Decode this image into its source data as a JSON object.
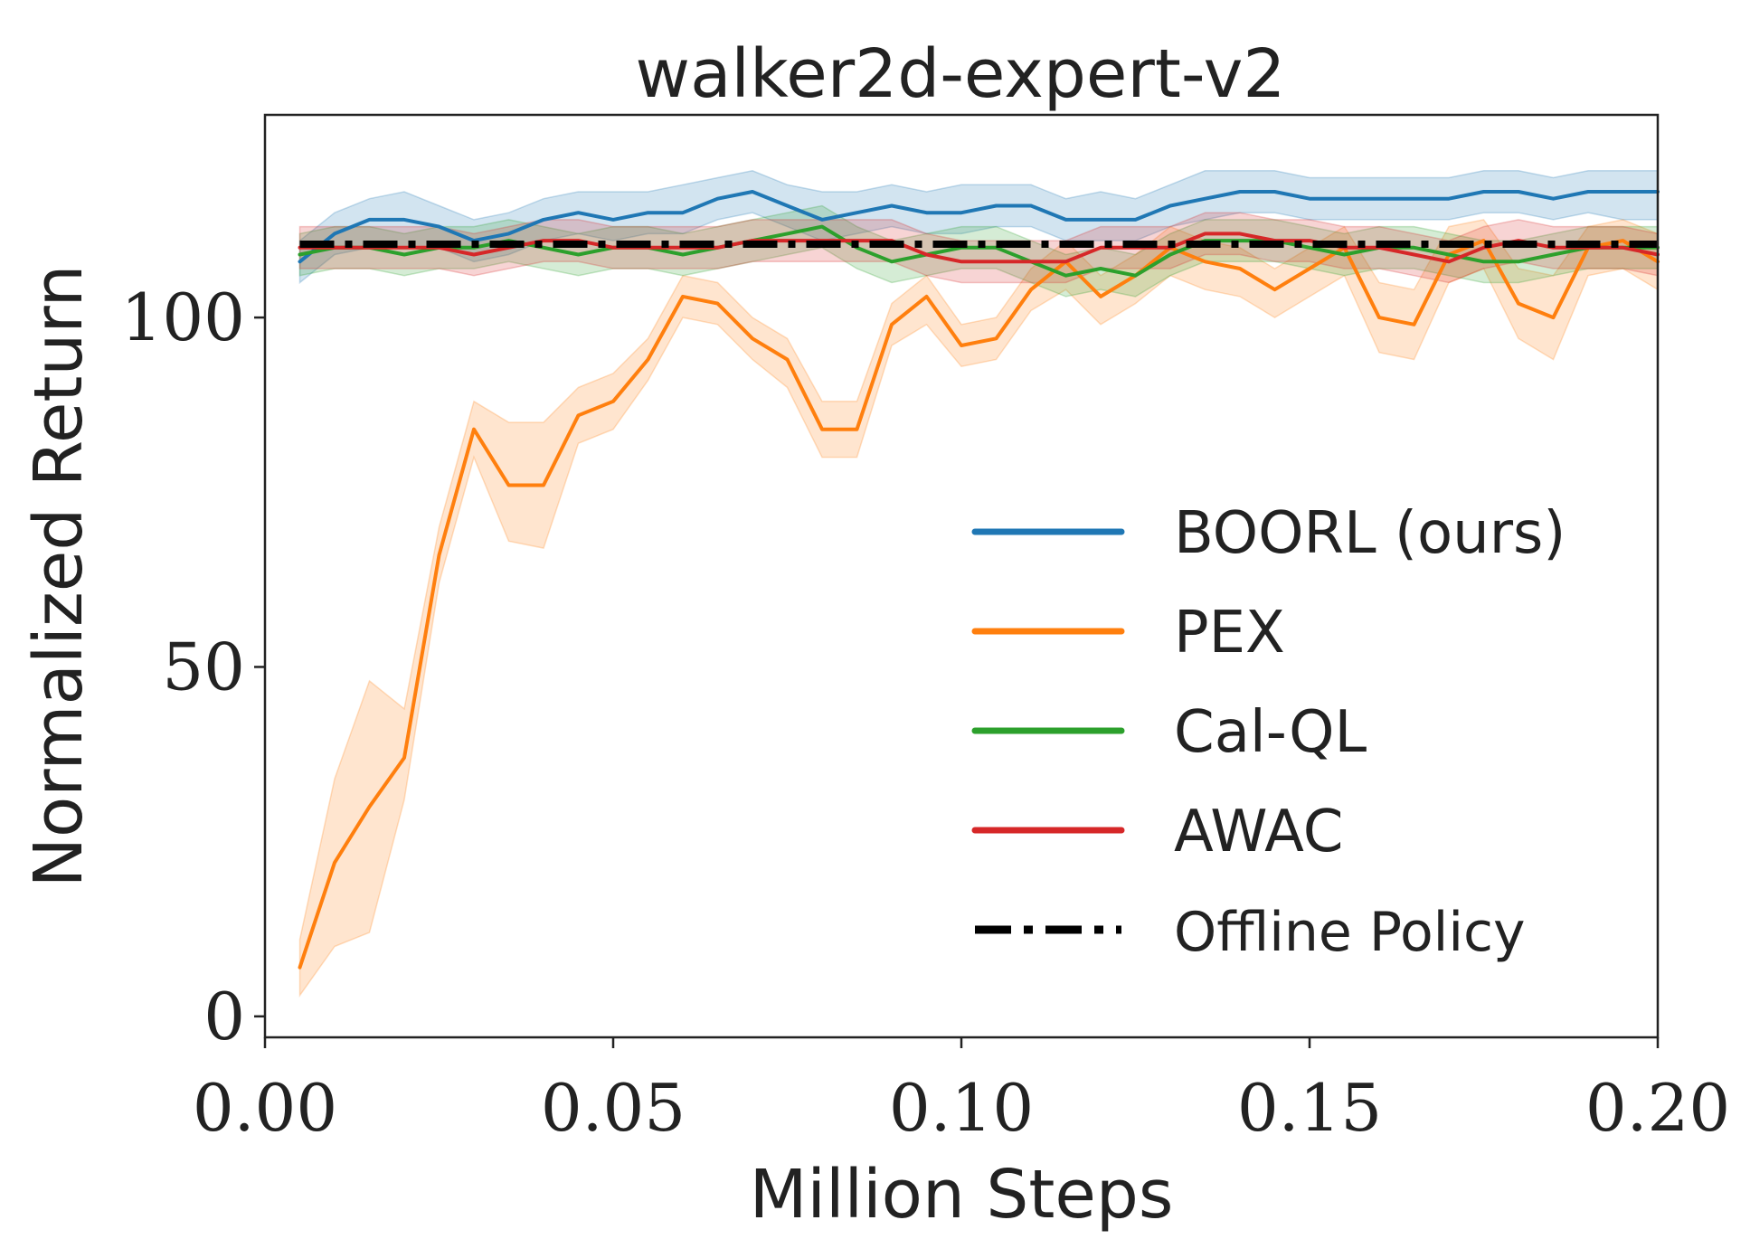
{
  "chart_data": {
    "type": "line",
    "title": "walker2d-expert-v2",
    "xlabel": "Million Steps",
    "ylabel": "Normalized Return",
    "xlim": [
      0.0,
      0.2
    ],
    "ylim": [
      -3,
      129
    ],
    "xticks": [
      0.0,
      0.05,
      0.1,
      0.15,
      0.2
    ],
    "xtick_labels": [
      "0.00",
      "0.05",
      "0.10",
      "0.15",
      "0.20"
    ],
    "yticks": [
      0,
      50,
      100
    ],
    "ytick_labels": [
      "0",
      "50",
      "100"
    ],
    "grid": false,
    "legend_position": "center-right",
    "series": [
      {
        "name": "BOORL (ours)",
        "color": "#1f77b4",
        "style": "solid",
        "x": [
          0.005,
          0.01,
          0.015,
          0.02,
          0.025,
          0.03,
          0.035,
          0.04,
          0.045,
          0.05,
          0.055,
          0.06,
          0.065,
          0.07,
          0.075,
          0.08,
          0.085,
          0.09,
          0.095,
          0.1,
          0.105,
          0.11,
          0.115,
          0.12,
          0.125,
          0.13,
          0.135,
          0.14,
          0.145,
          0.15,
          0.155,
          0.16,
          0.165,
          0.17,
          0.175,
          0.18,
          0.185,
          0.19,
          0.195,
          0.2
        ],
        "y": [
          108,
          112,
          114,
          114,
          113,
          111,
          112,
          114,
          115,
          114,
          115,
          115,
          117,
          118,
          116,
          114,
          115,
          116,
          115,
          115,
          116,
          116,
          114,
          114,
          114,
          116,
          117,
          118,
          118,
          117,
          117,
          117,
          117,
          117,
          118,
          118,
          117,
          118,
          118,
          118
        ],
        "lower": [
          105,
          109,
          110,
          110,
          110,
          108,
          109,
          111,
          112,
          111,
          112,
          112,
          114,
          115,
          113,
          111,
          112,
          113,
          112,
          112,
          113,
          113,
          111,
          111,
          111,
          113,
          114,
          115,
          115,
          114,
          114,
          114,
          114,
          114,
          115,
          115,
          114,
          115,
          114,
          114
        ],
        "upper": [
          111,
          115,
          117,
          118,
          116,
          114,
          115,
          117,
          118,
          118,
          118,
          119,
          120,
          121,
          119,
          118,
          118,
          119,
          118,
          119,
          119,
          119,
          117,
          118,
          117,
          119,
          121,
          121,
          121,
          120,
          120,
          120,
          120,
          120,
          121,
          121,
          120,
          121,
          121,
          121
        ]
      },
      {
        "name": "PEX",
        "color": "#ff7f0e",
        "style": "solid",
        "x": [
          0.005,
          0.01,
          0.015,
          0.02,
          0.025,
          0.03,
          0.035,
          0.04,
          0.045,
          0.05,
          0.055,
          0.06,
          0.065,
          0.07,
          0.075,
          0.08,
          0.085,
          0.09,
          0.095,
          0.1,
          0.105,
          0.11,
          0.115,
          0.12,
          0.125,
          0.13,
          0.135,
          0.14,
          0.145,
          0.15,
          0.155,
          0.16,
          0.165,
          0.17,
          0.175,
          0.18,
          0.185,
          0.19,
          0.195,
          0.2
        ],
        "y": [
          7,
          22,
          30,
          37,
          66,
          84,
          76,
          76,
          86,
          88,
          94,
          103,
          102,
          97,
          94,
          84,
          84,
          99,
          103,
          96,
          97,
          104,
          108,
          103,
          106,
          110,
          108,
          107,
          104,
          107,
          110,
          100,
          99,
          109,
          111,
          102,
          100,
          110,
          111,
          108
        ],
        "lower": [
          3,
          10,
          12,
          31,
          62,
          80,
          68,
          67,
          82,
          84,
          91,
          100,
          99,
          94,
          90,
          80,
          80,
          96,
          99,
          93,
          94,
          101,
          104,
          99,
          102,
          106,
          104,
          103,
          100,
          103,
          106,
          95,
          94,
          105,
          107,
          97,
          94,
          106,
          107,
          104
        ],
        "upper": [
          11,
          34,
          48,
          44,
          70,
          88,
          85,
          85,
          90,
          92,
          97,
          106,
          105,
          100,
          97,
          88,
          88,
          102,
          106,
          99,
          100,
          107,
          111,
          106,
          109,
          113,
          111,
          110,
          107,
          110,
          113,
          105,
          104,
          113,
          114,
          107,
          106,
          113,
          114,
          112
        ]
      },
      {
        "name": "Cal-QL",
        "color": "#2ca02c",
        "style": "solid",
        "x": [
          0.005,
          0.01,
          0.015,
          0.02,
          0.025,
          0.03,
          0.035,
          0.04,
          0.045,
          0.05,
          0.055,
          0.06,
          0.065,
          0.07,
          0.075,
          0.08,
          0.085,
          0.09,
          0.095,
          0.1,
          0.105,
          0.11,
          0.115,
          0.12,
          0.125,
          0.13,
          0.135,
          0.14,
          0.145,
          0.15,
          0.155,
          0.16,
          0.165,
          0.17,
          0.175,
          0.18,
          0.185,
          0.19,
          0.195,
          0.2
        ],
        "y": [
          109,
          110,
          110,
          109,
          110,
          110,
          111,
          110,
          109,
          110,
          110,
          109,
          110,
          111,
          112,
          113,
          110,
          108,
          109,
          110,
          110,
          108,
          106,
          107,
          106,
          109,
          111,
          111,
          111,
          110,
          109,
          110,
          110,
          109,
          108,
          108,
          109,
          110,
          110,
          110
        ],
        "lower": [
          106,
          107,
          107,
          106,
          107,
          107,
          108,
          107,
          106,
          107,
          107,
          106,
          107,
          108,
          109,
          110,
          107,
          105,
          106,
          107,
          107,
          105,
          103,
          104,
          103,
          106,
          108,
          108,
          108,
          107,
          106,
          107,
          107,
          106,
          105,
          105,
          106,
          107,
          107,
          107
        ],
        "upper": [
          112,
          113,
          113,
          112,
          113,
          113,
          114,
          113,
          112,
          113,
          113,
          112,
          113,
          114,
          115,
          116,
          113,
          111,
          112,
          113,
          113,
          111,
          109,
          110,
          109,
          112,
          114,
          114,
          114,
          113,
          112,
          113,
          113,
          112,
          111,
          111,
          112,
          113,
          113,
          113
        ]
      },
      {
        "name": "AWAC",
        "color": "#d62728",
        "style": "solid",
        "x": [
          0.005,
          0.01,
          0.015,
          0.02,
          0.025,
          0.03,
          0.035,
          0.04,
          0.045,
          0.05,
          0.055,
          0.06,
          0.065,
          0.07,
          0.075,
          0.08,
          0.085,
          0.09,
          0.095,
          0.1,
          0.105,
          0.11,
          0.115,
          0.12,
          0.125,
          0.13,
          0.135,
          0.14,
          0.145,
          0.15,
          0.155,
          0.16,
          0.165,
          0.17,
          0.175,
          0.18,
          0.185,
          0.19,
          0.195,
          0.2
        ],
        "y": [
          110,
          110,
          110,
          110,
          110,
          109,
          110,
          111,
          111,
          110,
          110,
          110,
          110,
          111,
          111,
          111,
          111,
          111,
          109,
          108,
          108,
          108,
          108,
          110,
          110,
          110,
          112,
          112,
          111,
          111,
          110,
          110,
          109,
          108,
          110,
          111,
          110,
          110,
          110,
          109
        ],
        "lower": [
          107,
          107,
          107,
          107,
          107,
          106,
          107,
          108,
          108,
          107,
          107,
          107,
          107,
          108,
          108,
          108,
          108,
          108,
          106,
          105,
          105,
          105,
          105,
          107,
          107,
          107,
          109,
          109,
          108,
          108,
          107,
          107,
          106,
          105,
          107,
          108,
          107,
          107,
          107,
          106
        ],
        "upper": [
          113,
          113,
          113,
          113,
          113,
          112,
          113,
          114,
          114,
          113,
          113,
          113,
          113,
          114,
          114,
          114,
          114,
          114,
          112,
          111,
          111,
          111,
          111,
          113,
          113,
          113,
          115,
          115,
          114,
          114,
          113,
          113,
          112,
          111,
          113,
          114,
          113,
          113,
          113,
          112
        ]
      },
      {
        "name": "Offline Policy",
        "color": "#000000",
        "style": "dashdot",
        "x": [
          0.005,
          0.2
        ],
        "y": [
          110.5,
          110.5
        ]
      }
    ]
  }
}
